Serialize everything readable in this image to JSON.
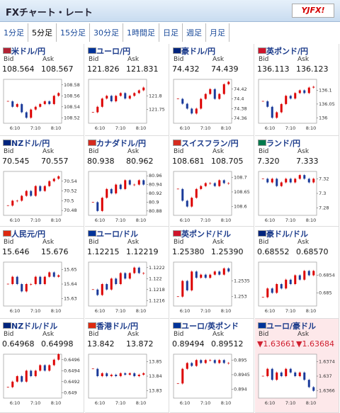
{
  "header": {
    "title": "FXチャート・レート",
    "logo": "YJFX!"
  },
  "tabs": [
    "1分足",
    "5分足",
    "15分足",
    "30分足",
    "1時間足",
    "日足",
    "週足",
    "月足"
  ],
  "active_tab": 1,
  "labels": {
    "bid": "Bid",
    "ask": "Ask"
  },
  "x_labels": [
    "6:10",
    "7:10",
    "8:10"
  ],
  "cards": [
    {
      "name": "米ドル/円",
      "flag": "#b22234",
      "bid": "108.564",
      "ask": "108.567",
      "ylim": [
        108.51,
        108.59
      ],
      "yticks": [
        108.58,
        108.56,
        108.54,
        108.52
      ],
      "values": [
        108.55,
        108.54,
        108.545,
        108.53,
        108.52,
        108.535,
        108.54,
        108.545,
        108.55,
        108.545,
        108.56,
        108.565
      ]
    },
    {
      "name": "ユーロ/円",
      "flag": "#003399",
      "bid": "121.826",
      "ask": "121.831",
      "ylim": [
        121.7,
        121.86
      ],
      "yticks": [
        121.8,
        121.75
      ],
      "values": [
        121.74,
        121.76,
        121.79,
        121.8,
        121.78,
        121.8,
        121.81,
        121.79,
        121.8,
        121.81,
        121.82,
        121.83
      ]
    },
    {
      "name": "豪ドル/円",
      "flag": "#00247d",
      "bid": "74.432",
      "ask": "74.439",
      "ylim": [
        74.35,
        74.44
      ],
      "yticks": [
        74.42,
        74.4,
        74.38,
        74.36
      ],
      "values": [
        74.4,
        74.39,
        74.38,
        74.37,
        74.38,
        74.4,
        74.41,
        74.42,
        74.4,
        74.41,
        74.43,
        74.435
      ]
    },
    {
      "name": "英ポンド/円",
      "flag": "#cf142b",
      "bid": "136.113",
      "ask": "136.123",
      "ylim": [
        135.98,
        136.14
      ],
      "yticks": [
        136.1,
        136.05,
        136
      ],
      "values": [
        136.06,
        136.04,
        136,
        136.02,
        136.05,
        136.08,
        136.07,
        136.09,
        136.1,
        136.09,
        136.11,
        136.113
      ]
    },
    {
      "name": "NZドル/円",
      "flag": "#00247d",
      "bid": "70.545",
      "ask": "70.557",
      "ylim": [
        70.47,
        70.56
      ],
      "yticks": [
        70.54,
        70.52,
        70.5,
        70.48
      ],
      "values": [
        70.49,
        70.5,
        70.5,
        70.51,
        70.52,
        70.51,
        70.53,
        70.52,
        70.53,
        70.54,
        70.545,
        70.55
      ]
    },
    {
      "name": "カナダドル/円",
      "flag": "#d52b1e",
      "bid": "80.938",
      "ask": "80.962",
      "ylim": [
        80.87,
        80.97
      ],
      "yticks": [
        80.96,
        80.94,
        80.92,
        80.9,
        80.88
      ],
      "values": [
        80.9,
        80.88,
        80.91,
        80.93,
        80.92,
        80.94,
        80.93,
        80.95,
        80.94,
        80.94,
        80.95,
        80.94
      ]
    },
    {
      "name": "スイスフラン/円",
      "flag": "#d52b1e",
      "bid": "108.681",
      "ask": "108.705",
      "ylim": [
        108.57,
        108.72
      ],
      "yticks": [
        108.7,
        108.65,
        108.6
      ],
      "values": [
        108.66,
        108.62,
        108.6,
        108.63,
        108.66,
        108.67,
        108.68,
        108.68,
        108.67,
        108.69,
        108.68,
        108.68
      ]
    },
    {
      "name": "ランド/円",
      "flag": "#007a4d",
      "bid": "7.320",
      "ask": "7.333",
      "ylim": [
        7.27,
        7.33
      ],
      "yticks": [
        7.32,
        7.3,
        7.28
      ],
      "values": [
        7.32,
        7.315,
        7.32,
        7.31,
        7.315,
        7.32,
        7.315,
        7.32,
        7.325,
        7.32,
        7.315,
        7.32
      ]
    },
    {
      "name": "人民元/円",
      "flag": "#de2910",
      "bid": "15.646",
      "ask": "15.676",
      "ylim": [
        15.625,
        15.655
      ],
      "yticks": [
        15.65,
        15.64,
        15.63
      ],
      "values": [
        15.64,
        15.645,
        15.64,
        15.635,
        15.64,
        15.64,
        15.645,
        15.64,
        15.645,
        15.648,
        15.645,
        15.646
      ]
    },
    {
      "name": "ユーロ/ドル",
      "flag": "#003399",
      "bid": "1.12215",
      "ask": "1.12219",
      "ylim": [
        1.1215,
        1.1223
      ],
      "yticks": [
        1.1222,
        1.122,
        1.1218,
        1.1216
      ],
      "values": [
        1.1218,
        1.1217,
        1.1219,
        1.1218,
        1.122,
        1.1219,
        1.1221,
        1.122,
        1.1221,
        1.1222,
        1.1221,
        1.1221
      ]
    },
    {
      "name": "英ポンド/ドル",
      "flag": "#cf142b",
      "bid": "1.25380",
      "ask": "1.25390",
      "ylim": [
        1.2527,
        1.2541
      ],
      "yticks": [
        1.2535,
        1.253
      ],
      "values": [
        1.253,
        1.2535,
        1.2532,
        1.2538,
        1.2536,
        1.2537,
        1.2536,
        1.2537,
        1.2538,
        1.2537,
        1.2539,
        1.2538
      ]
    },
    {
      "name": "豪ドル/ドル",
      "flag": "#00247d",
      "bid": "0.68552",
      "ask": "0.68570",
      "ylim": [
        0.6847,
        0.6857
      ],
      "yticks": [
        0.6854,
        0.685
      ],
      "values": [
        0.6849,
        0.6851,
        0.685,
        0.6852,
        0.6851,
        0.6853,
        0.6852,
        0.6854,
        0.6853,
        0.6855,
        0.6854,
        0.6855
      ]
    },
    {
      "name": "NZドル/ドル",
      "flag": "#00247d",
      "bid": "0.64968",
      "ask": "0.64998",
      "ylim": [
        0.6489,
        0.6497
      ],
      "yticks": [
        0.6496,
        0.6494,
        0.6492,
        0.649
      ],
      "values": [
        0.6491,
        0.6492,
        0.6493,
        0.6492,
        0.6494,
        0.6493,
        0.6494,
        0.6495,
        0.6494,
        0.6495,
        0.6496,
        0.6497
      ]
    },
    {
      "name": "香港ドル/円",
      "flag": "#de2910",
      "bid": "13.842",
      "ask": "13.872",
      "ylim": [
        13.825,
        13.855
      ],
      "yticks": [
        13.85,
        13.84,
        13.83
      ],
      "values": [
        13.845,
        13.84,
        13.842,
        13.84,
        13.841,
        13.84,
        13.842,
        13.841,
        13.842,
        13.84,
        13.841,
        13.842
      ]
    },
    {
      "name": "ユーロ/英ポンド",
      "flag": "#003399",
      "bid": "0.89494",
      "ask": "0.89512",
      "ylim": [
        0.8937,
        0.8952
      ],
      "yticks": [
        0.895,
        0.8945,
        0.894
      ],
      "values": [
        0.8942,
        0.8947,
        0.8949,
        0.8948,
        0.895,
        0.8949,
        0.895,
        0.895,
        0.8949,
        0.895,
        0.8949,
        0.8949
      ]
    },
    {
      "name": "ユーロ/豪ドル",
      "flag": "#003399",
      "bid": "▼1.63661",
      "ask": "▼1.63684",
      "down": true,
      "ylim": [
        1.6364,
        1.6376
      ],
      "yticks": [
        1.6374,
        1.637,
        1.6366
      ],
      "values": [
        1.637,
        1.6372,
        1.6369,
        1.6371,
        1.637,
        1.6372,
        1.6371,
        1.637,
        1.6371,
        1.6369,
        1.6367,
        1.6366
      ]
    }
  ]
}
